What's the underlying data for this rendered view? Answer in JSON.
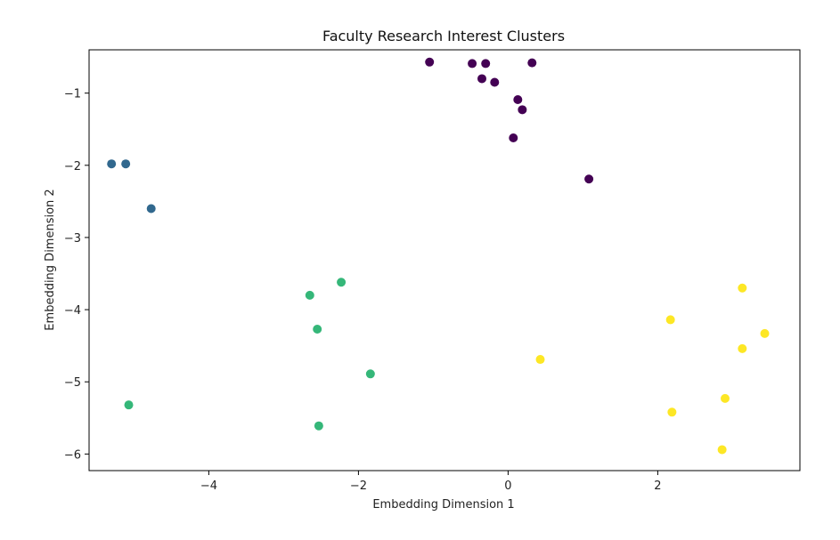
{
  "chart_data": {
    "type": "scatter",
    "title": "Faculty Research Interest Clusters",
    "xlabel": "Embedding Dimension 1",
    "ylabel": "Embedding Dimension 2",
    "xlim": [
      -5.6,
      3.9
    ],
    "ylim": [
      -6.23,
      -0.4
    ],
    "xticks": [
      -4,
      -2,
      0,
      2
    ],
    "yticks": [
      -1,
      -2,
      -3,
      -4,
      -5,
      -6
    ],
    "grid": false,
    "legend": "none",
    "series": [
      {
        "color": "#440154",
        "points": [
          {
            "x": -1.05,
            "y": -0.57
          },
          {
            "x": -0.48,
            "y": -0.59
          },
          {
            "x": -0.3,
            "y": -0.59
          },
          {
            "x": 0.32,
            "y": -0.58
          },
          {
            "x": -0.35,
            "y": -0.8
          },
          {
            "x": -0.18,
            "y": -0.85
          },
          {
            "x": 0.13,
            "y": -1.09
          },
          {
            "x": 0.19,
            "y": -1.23
          },
          {
            "x": 0.07,
            "y": -1.62
          },
          {
            "x": 1.08,
            "y": -2.19
          }
        ]
      },
      {
        "color": "#31688e",
        "points": [
          {
            "x": -5.3,
            "y": -1.98
          },
          {
            "x": -5.11,
            "y": -1.98
          },
          {
            "x": -4.77,
            "y": -2.6
          }
        ]
      },
      {
        "color": "#35b779",
        "points": [
          {
            "x": -2.23,
            "y": -3.62
          },
          {
            "x": -2.65,
            "y": -3.8
          },
          {
            "x": -2.55,
            "y": -4.27
          },
          {
            "x": -1.84,
            "y": -4.89
          },
          {
            "x": -5.07,
            "y": -5.32
          },
          {
            "x": -2.53,
            "y": -5.61
          }
        ]
      },
      {
        "color": "#fde725",
        "points": [
          {
            "x": 3.13,
            "y": -3.7
          },
          {
            "x": 2.17,
            "y": -4.14
          },
          {
            "x": 3.43,
            "y": -4.33
          },
          {
            "x": 3.13,
            "y": -4.54
          },
          {
            "x": 0.43,
            "y": -4.69
          },
          {
            "x": 2.9,
            "y": -5.23
          },
          {
            "x": 2.19,
            "y": -5.42
          },
          {
            "x": 2.86,
            "y": -5.94
          }
        ]
      }
    ]
  }
}
